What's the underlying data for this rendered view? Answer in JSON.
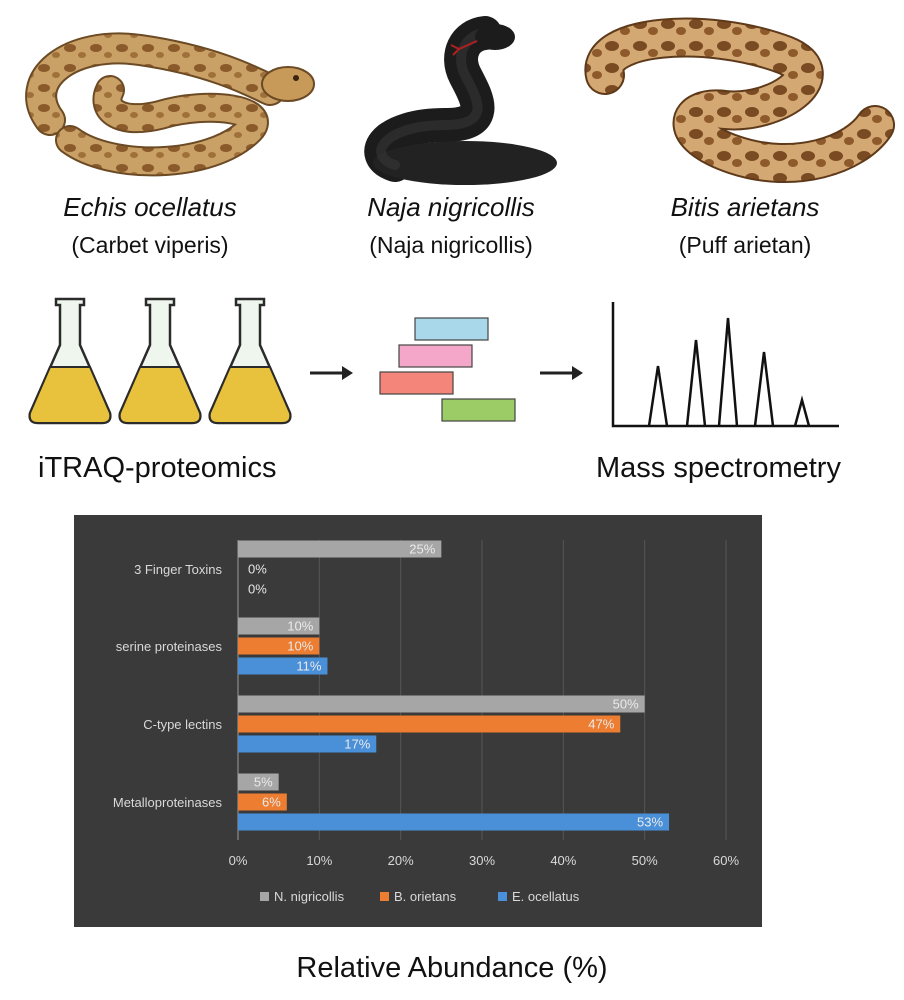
{
  "species": [
    {
      "name": "Echis ocellatus",
      "common": "(Carbet viperis)"
    },
    {
      "name": "Naja nigricollis",
      "common": "(Naja nigricollis)"
    },
    {
      "name": "Bitis arietans",
      "common": "(Puff arietan)"
    }
  ],
  "workflow": {
    "step1_label": "iTRAQ-proteomics",
    "step2_label": "Mass spectrometry",
    "gel_band_colors": [
      "#a8d8ea",
      "#f4a7c8",
      "#f4857a",
      "#9ccc65"
    ],
    "flask_liquid_color": "#e8c23c"
  },
  "chart_data": {
    "type": "bar",
    "orientation": "horizontal",
    "categories": [
      "3 Finger Toxins",
      "serine proteinases",
      "C-type lectins",
      "Metalloproteinases"
    ],
    "series": [
      {
        "name": "N. nigricollis",
        "color": "#a6a6a6",
        "values": [
          25,
          10,
          50,
          5
        ],
        "labels": [
          "25%",
          "10%",
          "50%",
          "5%"
        ]
      },
      {
        "name": "B. orietans",
        "color": "#ed7d31",
        "values": [
          0,
          10,
          47,
          6
        ],
        "labels": [
          "0%",
          "10%",
          "47%",
          "6%"
        ]
      },
      {
        "name": "E. ocellatus",
        "color": "#4a90d9",
        "values": [
          0,
          11,
          17,
          53
        ],
        "labels": [
          "0%",
          "11%",
          "17%",
          "53%"
        ]
      }
    ],
    "x_ticks": [
      "0%",
      "10%",
      "20%",
      "30%",
      "40%",
      "50%",
      "60%"
    ],
    "xlim": [
      0,
      60
    ],
    "grid": true,
    "legend_position": "bottom"
  },
  "footer": {
    "xlabel": "Relative Abundance (%)"
  }
}
